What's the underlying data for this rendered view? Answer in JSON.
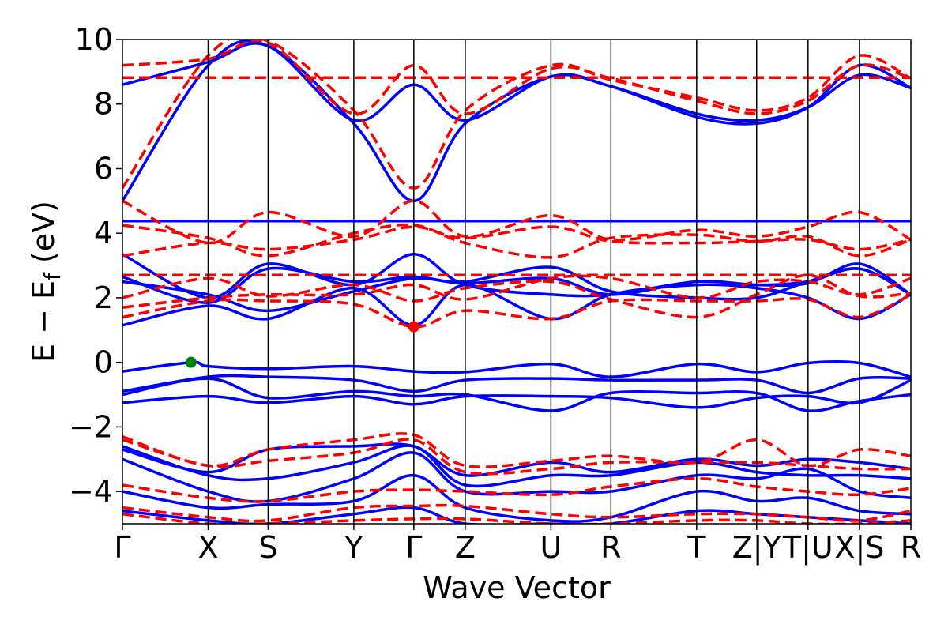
{
  "chart_data": {
    "type": "line",
    "xlabel": "Wave Vector",
    "ylabel": {
      "main": "E − E",
      "sub": "f",
      "unit": " (eV)"
    },
    "ylim": [
      -5,
      10
    ],
    "yticks": [
      {
        "value": -4,
        "label": "−4"
      },
      {
        "value": -2,
        "label": "−2"
      },
      {
        "value": 0,
        "label": "0"
      },
      {
        "value": 2,
        "label": "2"
      },
      {
        "value": 4,
        "label": "4"
      },
      {
        "value": 6,
        "label": "6"
      },
      {
        "value": 8,
        "label": "8"
      },
      {
        "value": 10,
        "label": "10"
      }
    ],
    "xlim": [
      0,
      9.2
    ],
    "kpoints": [
      {
        "x": 0.0,
        "label": "Γ"
      },
      {
        "x": 1.0,
        "label": "X"
      },
      {
        "x": 1.7,
        "label": "S"
      },
      {
        "x": 2.7,
        "label": "Y"
      },
      {
        "x": 3.4,
        "label": "Γ"
      },
      {
        "x": 4.0,
        "label": "Z"
      },
      {
        "x": 5.0,
        "label": "U"
      },
      {
        "x": 5.7,
        "label": "R"
      },
      {
        "x": 6.7,
        "label": "T"
      },
      {
        "x": 7.4,
        "label": "Z|Y"
      },
      {
        "x": 8.0,
        "label": "T|U"
      },
      {
        "x": 8.6,
        "label": "X|S"
      },
      {
        "x": 9.2,
        "label": "R"
      }
    ],
    "colors": {
      "solid": "#0000ff",
      "dashed": "#ff0000",
      "vbm": "#008000",
      "cbm": "#ff0000",
      "vline": "#000000"
    },
    "series": [
      {
        "style": "solid",
        "x": [
          0,
          1.0,
          1.7,
          2.7,
          3.4,
          4.0,
          5.0,
          5.7,
          6.7,
          7.4,
          8.0,
          8.6,
          9.2
        ],
        "values": [
          4.38,
          4.38,
          4.38,
          4.38,
          4.38,
          4.38,
          4.38,
          4.38,
          4.38,
          4.38,
          4.38,
          4.38,
          4.38
        ]
      },
      {
        "style": "solid",
        "x": [
          0,
          0.8,
          1.0,
          1.7,
          2.7,
          3.4,
          4.0,
          5.0,
          5.7,
          6.7,
          7.4,
          8.0,
          8.6,
          9.2
        ],
        "values": [
          -0.28,
          0.0,
          -0.12,
          -0.2,
          -0.12,
          -0.28,
          -0.3,
          -0.05,
          -0.45,
          -0.05,
          -0.3,
          -0.02,
          -0.02,
          -0.45
        ]
      },
      {
        "style": "solid",
        "x": [
          0,
          1.0,
          1.7,
          2.7,
          3.4,
          4.0,
          5.0,
          5.7,
          6.7,
          7.4,
          8.0,
          8.6,
          9.2
        ],
        "values": [
          -0.9,
          -0.45,
          -0.45,
          -0.55,
          -0.9,
          -0.55,
          -0.5,
          -0.55,
          -0.55,
          -0.55,
          -0.95,
          -0.5,
          -0.5
        ]
      },
      {
        "style": "solid",
        "x": [
          0,
          1.0,
          1.7,
          2.7,
          3.4,
          4.0,
          5.0,
          5.7,
          6.7,
          7.4,
          8.0,
          8.6,
          9.2
        ],
        "values": [
          -1.0,
          -0.5,
          -1.1,
          -0.9,
          -1.05,
          -1.0,
          -1.5,
          -0.95,
          -0.95,
          -0.95,
          -1.5,
          -1.2,
          -1.0
        ]
      },
      {
        "style": "solid",
        "x": [
          0,
          1.0,
          1.7,
          2.7,
          3.4,
          4.0,
          5.0,
          5.7,
          6.7,
          7.4,
          8.0,
          8.6,
          9.2
        ],
        "values": [
          -1.25,
          -1.05,
          -1.25,
          -1.05,
          -1.3,
          -1.05,
          -1.05,
          -1.1,
          -1.4,
          -1.1,
          -1.05,
          -1.25,
          -0.55
        ]
      },
      {
        "style": "solid",
        "x": [
          0,
          1.0,
          1.7,
          2.7,
          3.4,
          4.0,
          5.0,
          5.7,
          6.7,
          7.4,
          8.0,
          8.6,
          9.2
        ],
        "values": [
          1.15,
          1.75,
          1.35,
          2.3,
          1.15,
          2.4,
          1.35,
          2.1,
          2.4,
          2.3,
          2.0,
          1.35,
          2.1
        ]
      },
      {
        "style": "solid",
        "x": [
          0,
          1.0,
          1.7,
          2.7,
          3.4,
          4.0,
          5.0,
          5.7,
          6.7,
          7.4,
          8.0,
          8.6,
          9.2
        ],
        "values": [
          2.5,
          2.1,
          1.6,
          2.2,
          2.6,
          2.5,
          2.95,
          2.2,
          2.0,
          2.0,
          2.5,
          2.9,
          2.1
        ]
      },
      {
        "style": "solid",
        "x": [
          0,
          1.0,
          1.7,
          2.7,
          3.4,
          4.0,
          5.0,
          5.7,
          6.7,
          7.4,
          8.0,
          8.6,
          9.2
        ],
        "values": [
          3.35,
          2.0,
          3.05,
          2.4,
          3.35,
          2.4,
          2.1,
          2.1,
          2.5,
          2.4,
          2.45,
          3.05,
          2.1
        ]
      },
      {
        "style": "solid",
        "x": [
          0,
          1.0,
          1.7,
          2.7,
          3.4,
          4.0,
          5.0,
          5.7,
          6.7,
          7.4,
          8.0,
          8.6,
          9.2
        ],
        "values": [
          2.65,
          1.85,
          2.9,
          2.5,
          2.65,
          2.45,
          2.6,
          2.1,
          2.5,
          2.4,
          2.5,
          2.9,
          2.1
        ]
      },
      {
        "style": "solid",
        "x": [
          0,
          1.0,
          1.7,
          2.7,
          3.4,
          4.0,
          5.0,
          5.7,
          6.7,
          7.4,
          8.0,
          8.6,
          9.2
        ],
        "values": [
          5.0,
          9.2,
          9.8,
          7.4,
          5.0,
          7.4,
          8.85,
          8.55,
          7.6,
          7.4,
          7.9,
          9.2,
          8.5
        ]
      },
      {
        "style": "solid",
        "x": [
          0,
          1.0,
          1.7,
          2.7,
          3.4,
          4.0,
          5.0,
          5.7,
          6.7,
          7.4,
          8.0,
          8.6,
          9.2
        ],
        "values": [
          8.6,
          9.3,
          9.8,
          7.5,
          8.6,
          7.5,
          8.85,
          8.55,
          7.7,
          7.5,
          7.9,
          8.9,
          8.5
        ]
      },
      {
        "style": "solid",
        "x": [
          0,
          1.0,
          1.7,
          2.7,
          3.4,
          4.0,
          5.0,
          5.7,
          6.7,
          7.4,
          8.0,
          8.6,
          9.2
        ],
        "values": [
          -2.7,
          -3.4,
          -2.7,
          -2.6,
          -2.6,
          -3.5,
          -3.1,
          -3.4,
          -3.0,
          -3.2,
          -3.0,
          -3.1,
          -3.3
        ]
      },
      {
        "style": "solid",
        "x": [
          0,
          1.0,
          1.7,
          2.7,
          3.4,
          4.0,
          5.0,
          5.7,
          6.7,
          7.4,
          8.0,
          8.6,
          9.2
        ],
        "values": [
          -2.6,
          -3.5,
          -3.6,
          -3.1,
          -2.6,
          -3.8,
          -3.5,
          -3.5,
          -3.1,
          -3.4,
          -3.5,
          -3.5,
          -3.6
        ]
      },
      {
        "style": "solid",
        "x": [
          0,
          1.0,
          1.7,
          2.7,
          3.4,
          4.0,
          5.0,
          5.7,
          6.7,
          7.4,
          8.0,
          8.6,
          9.2
        ],
        "values": [
          -3.0,
          -4.0,
          -4.3,
          -3.6,
          -2.8,
          -4.0,
          -4.0,
          -4.0,
          -3.5,
          -3.6,
          -3.3,
          -4.0,
          -4.2
        ]
      },
      {
        "style": "solid",
        "x": [
          0,
          1.0,
          1.7,
          2.7,
          3.4,
          4.0,
          5.0,
          5.7,
          6.7,
          7.4,
          8.0,
          8.6,
          9.2
        ],
        "values": [
          -4.0,
          -4.5,
          -4.4,
          -4.3,
          -3.5,
          -4.5,
          -4.9,
          -4.8,
          -4.0,
          -4.3,
          -4.2,
          -4.6,
          -4.7
        ]
      },
      {
        "style": "solid",
        "x": [
          0,
          1.0,
          1.7,
          2.7,
          3.4,
          4.0,
          5.0,
          5.7,
          6.7,
          7.4,
          8.0,
          8.6,
          9.2
        ],
        "values": [
          -4.6,
          -4.9,
          -5.0,
          -4.7,
          -4.5,
          -5.0,
          -5.0,
          -5.0,
          -4.6,
          -4.7,
          -4.8,
          -4.9,
          -5.0
        ]
      },
      {
        "style": "dashed",
        "x": [
          0,
          1.0,
          1.7,
          2.7,
          3.4,
          4.0,
          5.0,
          5.7,
          6.7,
          7.4,
          8.0,
          8.6,
          9.2
        ],
        "values": [
          8.82,
          8.82,
          8.82,
          8.82,
          8.82,
          8.82,
          8.82,
          8.82,
          8.82,
          8.82,
          8.82,
          8.82,
          8.82
        ]
      },
      {
        "style": "dashed",
        "x": [
          0,
          1.0,
          1.7,
          2.7,
          3.4,
          4.0,
          5.0,
          5.7,
          6.7,
          7.4,
          8.0,
          8.6,
          9.2
        ],
        "values": [
          5.4,
          9.5,
          9.95,
          7.8,
          5.4,
          7.8,
          9.2,
          8.75,
          8.2,
          7.8,
          8.2,
          9.5,
          8.8
        ]
      },
      {
        "style": "dashed",
        "x": [
          0,
          1.0,
          1.7,
          2.7,
          3.4,
          4.0,
          5.0,
          5.7,
          6.7,
          7.4,
          8.0,
          8.6,
          9.2
        ],
        "values": [
          9.2,
          9.4,
          9.9,
          7.7,
          9.2,
          7.7,
          9.1,
          8.8,
          8.1,
          7.7,
          8.1,
          9.2,
          8.8
        ]
      },
      {
        "style": "dashed",
        "x": [
          0,
          1.0,
          1.7,
          2.7,
          3.4,
          4.0,
          5.0,
          5.7,
          6.7,
          7.4,
          8.0,
          8.6,
          9.2
        ],
        "values": [
          5.0,
          3.7,
          4.65,
          3.9,
          5.0,
          3.9,
          4.55,
          3.8,
          4.1,
          3.9,
          4.2,
          4.65,
          3.8
        ]
      },
      {
        "style": "dashed",
        "x": [
          0,
          1.0,
          1.7,
          2.7,
          3.4,
          4.0,
          5.0,
          5.7,
          6.7,
          7.4,
          8.0,
          8.6,
          9.2
        ],
        "values": [
          4.25,
          3.85,
          3.3,
          4.0,
          4.25,
          3.7,
          3.25,
          3.85,
          3.95,
          3.75,
          3.9,
          3.3,
          3.8
        ]
      },
      {
        "style": "dashed",
        "x": [
          0,
          1.0,
          1.7,
          2.7,
          3.4,
          4.0,
          5.0,
          5.7,
          6.7,
          7.4,
          8.0,
          8.6,
          9.2
        ],
        "values": [
          3.3,
          3.7,
          3.5,
          3.8,
          4.2,
          3.85,
          4.2,
          3.75,
          3.7,
          3.75,
          3.8,
          3.5,
          3.8
        ]
      },
      {
        "style": "dashed",
        "x": [
          0,
          1.0,
          1.7,
          2.7,
          3.4,
          4.0,
          5.0,
          5.7,
          6.7,
          7.4,
          8.0,
          8.6,
          9.2
        ],
        "values": [
          2.7,
          2.7,
          2.7,
          2.7,
          2.7,
          2.7,
          2.7,
          2.7,
          2.7,
          2.7,
          2.7,
          2.7,
          2.7
        ]
      },
      {
        "style": "dashed",
        "x": [
          0,
          1.0,
          1.7,
          2.7,
          3.4,
          4.0,
          5.0,
          5.7,
          6.7,
          7.4,
          8.0,
          8.6,
          9.2
        ],
        "values": [
          2.0,
          2.6,
          2.05,
          2.4,
          1.9,
          2.3,
          2.5,
          1.95,
          1.4,
          2.1,
          2.7,
          2.05,
          2.15
        ]
      },
      {
        "style": "dashed",
        "x": [
          0,
          1.0,
          1.7,
          2.7,
          3.4,
          4.0,
          5.0,
          5.7,
          6.7,
          7.4,
          8.0,
          8.6,
          9.2
        ],
        "values": [
          1.4,
          1.9,
          1.9,
          1.8,
          1.1,
          1.6,
          1.35,
          1.9,
          1.9,
          1.9,
          1.95,
          1.4,
          2.1
        ]
      },
      {
        "style": "dashed",
        "x": [
          0,
          1.0,
          1.7,
          2.7,
          3.4,
          4.0,
          5.0,
          5.7,
          6.7,
          7.4,
          8.0,
          8.6,
          9.2
        ],
        "values": [
          1.7,
          2.0,
          2.1,
          2.1,
          2.4,
          1.95,
          2.6,
          2.6,
          2.0,
          2.5,
          2.5,
          2.1,
          2.6
        ]
      },
      {
        "style": "dashed",
        "x": [
          0,
          1.0,
          1.7,
          2.7,
          3.4,
          4.0,
          5.0,
          5.7,
          6.7,
          7.4,
          8.0,
          8.6,
          9.2
        ],
        "values": [
          -2.3,
          -3.2,
          -2.7,
          -2.4,
          -2.25,
          -3.2,
          -3.05,
          -2.9,
          -3.1,
          -2.4,
          -3.2,
          -2.7,
          -2.9
        ]
      },
      {
        "style": "dashed",
        "x": [
          0,
          1.0,
          1.7,
          2.7,
          3.4,
          4.0,
          5.0,
          5.7,
          6.7,
          7.4,
          8.0,
          8.6,
          9.2
        ],
        "values": [
          -2.4,
          -3.2,
          -3.05,
          -2.8,
          -2.4,
          -3.4,
          -3.3,
          -3.1,
          -3.1,
          -3.1,
          -3.2,
          -3.3,
          -3.3
        ]
      },
      {
        "style": "dashed",
        "x": [
          0,
          1.0,
          1.7,
          2.7,
          3.4,
          4.0,
          5.0,
          5.7,
          6.7,
          7.4,
          8.0,
          8.6,
          9.2
        ],
        "values": [
          -3.8,
          -4.2,
          -4.3,
          -4.0,
          -3.95,
          -4.0,
          -4.1,
          -3.85,
          -3.6,
          -3.85,
          -4.0,
          -4.1,
          -3.9
        ]
      },
      {
        "style": "dashed",
        "x": [
          0,
          1.0,
          1.7,
          2.7,
          3.4,
          4.0,
          5.0,
          5.7,
          6.7,
          7.4,
          8.0,
          8.6,
          9.2
        ],
        "values": [
          -4.5,
          -4.8,
          -4.9,
          -4.5,
          -4.45,
          -4.45,
          -4.7,
          -4.8,
          -4.7,
          -4.7,
          -4.8,
          -4.9,
          -4.6
        ]
      },
      {
        "style": "dashed",
        "x": [
          0,
          1.0,
          1.7,
          2.7,
          3.4,
          4.0,
          5.0,
          5.7,
          6.7,
          7.4,
          8.0,
          8.6,
          9.2
        ],
        "values": [
          -4.7,
          -5.0,
          -5.0,
          -4.9,
          -4.85,
          -4.85,
          -5.0,
          -5.0,
          -4.9,
          -4.9,
          -5.0,
          -5.0,
          -4.9
        ]
      }
    ],
    "markers": [
      {
        "name": "vbm",
        "x": 0.8,
        "y": 0.0,
        "color": "#008000"
      },
      {
        "name": "cbm",
        "x": 3.4,
        "y": 1.1,
        "color": "#ff0000"
      }
    ]
  }
}
